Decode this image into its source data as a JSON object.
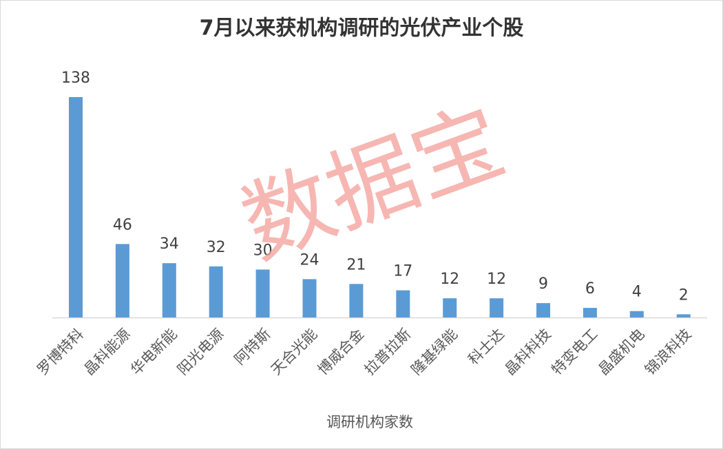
{
  "chart_data": {
    "type": "bar",
    "title": "7月以来获机构调研的光伏产业个股",
    "categories": [
      "罗博特科",
      "晶科能源",
      "华电新能",
      "阳光电源",
      "阿特斯",
      "天合光能",
      "博威合金",
      "拉普拉斯",
      "隆基绿能",
      "科士达",
      "晶科科技",
      "特变电工",
      "晶盛机电",
      "锦浪科技"
    ],
    "values": [
      138,
      46,
      34,
      32,
      30,
      24,
      21,
      17,
      12,
      12,
      9,
      6,
      4,
      2
    ],
    "color": "#5b9bd5",
    "x_label": "调研机构家数",
    "watermark": "数据宝"
  }
}
